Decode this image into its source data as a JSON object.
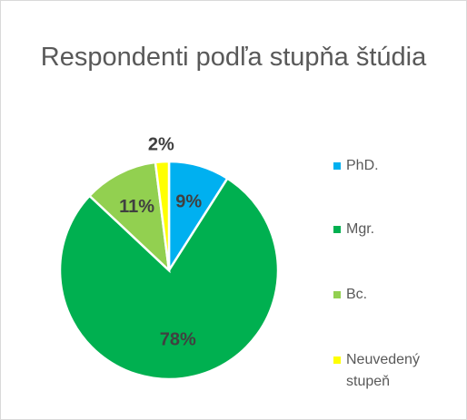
{
  "chart_data": {
    "type": "pie",
    "title": "Respondenti podľa stupňa štúdia",
    "categories": [
      "PhD.",
      "Mgr.",
      "Bc.",
      "Neuvedený stupeň"
    ],
    "values": [
      9,
      78,
      11,
      2
    ],
    "value_labels": [
      "9%",
      "78%",
      "11%",
      "2%"
    ],
    "colors": [
      "#00b0f0",
      "#00b050",
      "#92d050",
      "#ffff00"
    ],
    "legend": "right"
  }
}
